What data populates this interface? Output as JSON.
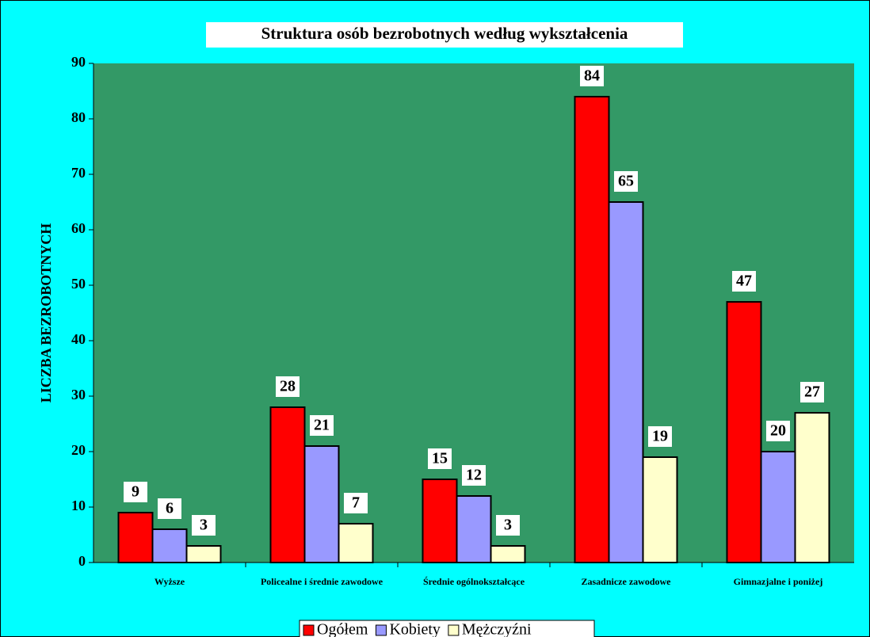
{
  "chart_data": {
    "type": "bar",
    "title": "Struktura osób bezrobotnych według wykształcenia",
    "y_label": "LICZBA BEZROBOTNYCH",
    "categories": [
      "Wyższe",
      "Policealne i średnie zawodowe",
      "Średnie ogólnokształcące",
      "Zasadnicze zawodowe",
      "Gimnazjalne i poniżej"
    ],
    "series": [
      {
        "name": "Ogółem",
        "color": "#ff0000",
        "values": [
          9,
          28,
          15,
          84,
          47
        ]
      },
      {
        "name": "Kobiety",
        "color": "#9999ff",
        "values": [
          6,
          21,
          12,
          65,
          20
        ]
      },
      {
        "name": "Mężczyźni",
        "color": "#ffffcc",
        "values": [
          3,
          7,
          3,
          19,
          27
        ]
      }
    ],
    "ylim": [
      0,
      90
    ],
    "yticks": [
      0,
      10,
      20,
      30,
      40,
      50,
      60,
      70,
      80,
      90
    ]
  }
}
